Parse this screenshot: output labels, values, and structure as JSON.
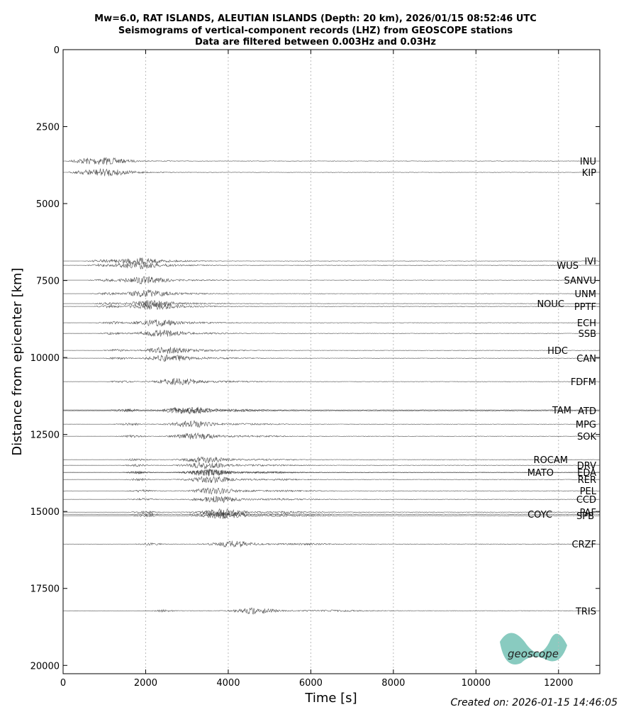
{
  "chart_data": {
    "type": "record-section",
    "title": [
      "Mw=6.0, RAT ISLANDS, ALEUTIAN ISLANDS (Depth: 20 km), 2026/01/15 08:52:46 UTC",
      "Seismograms of vertical-component records (LHZ) from GEOSCOPE stations",
      "Data are filtered between 0.003Hz and 0.03Hz"
    ],
    "x_label": "Time [s]",
    "y_label": "Distance from epicenter [km]",
    "xlim": [
      0,
      13000
    ],
    "xticks": [
      0,
      2000,
      4000,
      6000,
      8000,
      10000,
      12000
    ],
    "ylim": [
      0,
      20270
    ],
    "y_inverted": true,
    "yticks": [
      0,
      2500,
      5000,
      7500,
      10000,
      12500,
      15000,
      17500,
      20000
    ],
    "grid": "x",
    "color": "#333333",
    "stations": [
      "INU",
      "KIP",
      "IVI",
      "WUS",
      "SANVU",
      "UNM",
      "NOUC",
      "PPTF",
      "ECH",
      "SSB",
      "HDC",
      "CAN",
      "FDFM",
      "TAM",
      "ATD",
      "MPG",
      "SOK",
      "ROCAM",
      "DRV",
      "MATO",
      "EDA",
      "RER",
      "PEL",
      "CCD",
      "PAF",
      "COYC",
      "SPB",
      "CRZF",
      "TRIS"
    ],
    "distances": [
      3618,
      3986,
      6866,
      7005,
      7488,
      7926,
      8249,
      8341,
      8871,
      9217,
      9770,
      10023,
      10783,
      11705,
      11728,
      12166,
      12558,
      13318,
      13502,
      13733,
      13733,
      13963,
      14332,
      14608,
      15023,
      15092,
      15138,
      16060,
      18226
    ],
    "logo": "geoscope",
    "footer": "Created on: 2026-01-15 14:46:05"
  }
}
